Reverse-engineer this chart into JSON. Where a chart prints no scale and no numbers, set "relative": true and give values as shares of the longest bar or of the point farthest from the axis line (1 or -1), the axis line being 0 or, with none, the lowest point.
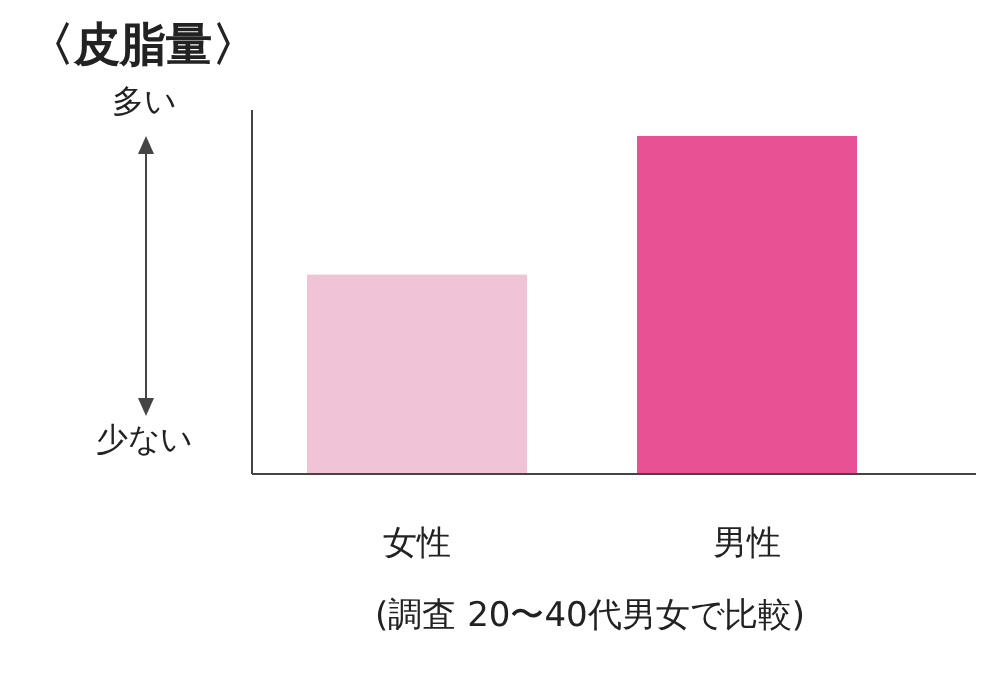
{
  "chart_data": {
    "type": "bar",
    "title": "〈皮脂量〉",
    "relative": true,
    "categories": [
      "女性",
      "男性"
    ],
    "values": [
      0.59,
      1
    ],
    "colors": [
      "#f0c3d7",
      "#e85193"
    ],
    "annotations": [
      "多い",
      "少ない",
      "(調査 20〜40代男女で比較)"
    ]
  }
}
